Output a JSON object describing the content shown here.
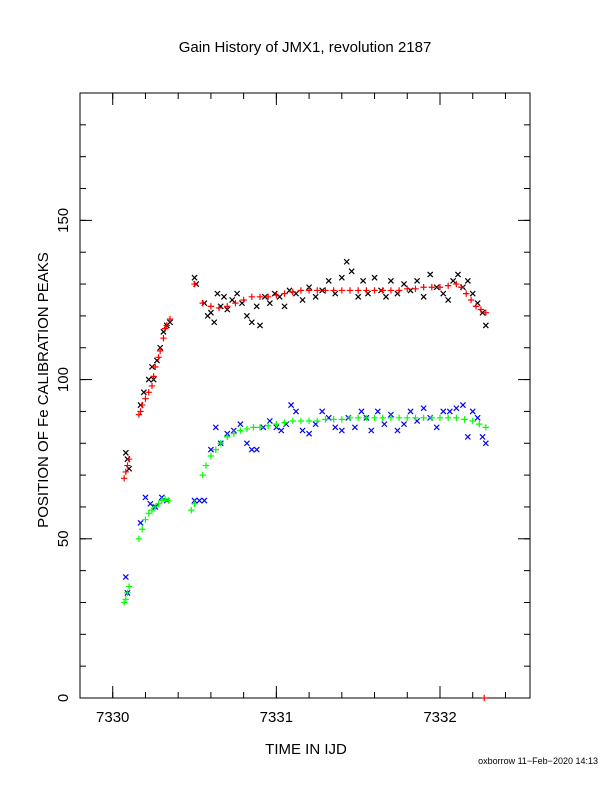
{
  "chart_data": {
    "type": "scatter",
    "title": "Gain History of JMX1, revolution 2187",
    "xlabel": "TIME IN IJD",
    "ylabel": "POSITION OF Fe CALIBRATION PEAKS",
    "xlim": [
      7329.8,
      7332.55
    ],
    "ylim": [
      0,
      190
    ],
    "x_ticks": [
      7330,
      7331,
      7332
    ],
    "y_ticks": [
      0,
      50,
      100,
      150
    ],
    "x_minor_step": 0.2,
    "y_minor_step": 10,
    "grid": false,
    "colors": {
      "black": "#000000",
      "red": "#ff0000",
      "blue": "#0000ff",
      "green": "#00ff00"
    },
    "series": [
      {
        "color": "#000000",
        "marker": "x",
        "points": [
          [
            7330.08,
            77
          ],
          [
            7330.09,
            75
          ],
          [
            7330.1,
            72
          ],
          [
            7330.17,
            92
          ],
          [
            7330.19,
            96
          ],
          [
            7330.22,
            100
          ],
          [
            7330.24,
            104
          ],
          [
            7330.25,
            100
          ],
          [
            7330.27,
            106
          ],
          [
            7330.29,
            110
          ],
          [
            7330.31,
            115
          ],
          [
            7330.33,
            117
          ],
          [
            7330.35,
            118
          ],
          [
            7330.5,
            132
          ],
          [
            7330.51,
            130
          ],
          [
            7330.56,
            124
          ],
          [
            7330.58,
            120
          ],
          [
            7330.6,
            121
          ],
          [
            7330.62,
            118
          ],
          [
            7330.64,
            127
          ],
          [
            7330.66,
            123
          ],
          [
            7330.68,
            126
          ],
          [
            7330.7,
            122
          ],
          [
            7330.73,
            125
          ],
          [
            7330.76,
            127
          ],
          [
            7330.79,
            124
          ],
          [
            7330.82,
            120
          ],
          [
            7330.85,
            118
          ],
          [
            7330.88,
            123
          ],
          [
            7330.9,
            117
          ],
          [
            7330.93,
            126
          ],
          [
            7330.96,
            124
          ],
          [
            7330.99,
            127
          ],
          [
            7331.02,
            126
          ],
          [
            7331.05,
            123
          ],
          [
            7331.08,
            128
          ],
          [
            7331.12,
            127
          ],
          [
            7331.16,
            125
          ],
          [
            7331.2,
            129
          ],
          [
            7331.24,
            126
          ],
          [
            7331.28,
            128
          ],
          [
            7331.32,
            131
          ],
          [
            7331.36,
            127
          ],
          [
            7331.4,
            132
          ],
          [
            7331.43,
            137
          ],
          [
            7331.46,
            134
          ],
          [
            7331.5,
            126
          ],
          [
            7331.53,
            131
          ],
          [
            7331.56,
            127
          ],
          [
            7331.6,
            132
          ],
          [
            7331.64,
            128
          ],
          [
            7331.67,
            126
          ],
          [
            7331.7,
            131
          ],
          [
            7331.74,
            127
          ],
          [
            7331.78,
            130
          ],
          [
            7331.82,
            128
          ],
          [
            7331.86,
            131
          ],
          [
            7331.9,
            126
          ],
          [
            7331.94,
            133
          ],
          [
            7331.98,
            129
          ],
          [
            7332.02,
            127
          ],
          [
            7332.05,
            125
          ],
          [
            7332.08,
            131
          ],
          [
            7332.11,
            133
          ],
          [
            7332.14,
            129
          ],
          [
            7332.17,
            131
          ],
          [
            7332.2,
            127
          ],
          [
            7332.23,
            124
          ],
          [
            7332.26,
            121
          ],
          [
            7332.28,
            117
          ]
        ]
      },
      {
        "color": "#ff0000",
        "marker": "+",
        "points": [
          [
            7330.07,
            69
          ],
          [
            7330.08,
            71
          ],
          [
            7330.09,
            73
          ],
          [
            7330.1,
            75
          ],
          [
            7330.16,
            89
          ],
          [
            7330.17,
            90
          ],
          [
            7330.18,
            92
          ],
          [
            7330.2,
            94
          ],
          [
            7330.22,
            96
          ],
          [
            7330.24,
            98
          ],
          [
            7330.25,
            101
          ],
          [
            7330.26,
            104
          ],
          [
            7330.28,
            107
          ],
          [
            7330.29,
            109
          ],
          [
            7330.31,
            113
          ],
          [
            7330.32,
            116
          ],
          [
            7330.33,
            117
          ],
          [
            7330.35,
            119
          ],
          [
            7330.5,
            130
          ],
          [
            7330.55,
            124
          ],
          [
            7330.6,
            123
          ],
          [
            7330.65,
            122.5
          ],
          [
            7330.7,
            123
          ],
          [
            7330.75,
            124
          ],
          [
            7330.8,
            125
          ],
          [
            7330.85,
            126
          ],
          [
            7330.9,
            126
          ],
          [
            7330.95,
            126
          ],
          [
            7331.0,
            126.5
          ],
          [
            7331.05,
            127
          ],
          [
            7331.1,
            127.5
          ],
          [
            7331.15,
            128
          ],
          [
            7331.2,
            128
          ],
          [
            7331.25,
            128
          ],
          [
            7331.3,
            128
          ],
          [
            7331.35,
            128
          ],
          [
            7331.4,
            128
          ],
          [
            7331.45,
            128
          ],
          [
            7331.5,
            128
          ],
          [
            7331.55,
            128
          ],
          [
            7331.6,
            128
          ],
          [
            7331.65,
            128
          ],
          [
            7331.7,
            128
          ],
          [
            7331.75,
            128
          ],
          [
            7331.8,
            128.5
          ],
          [
            7331.85,
            128.5
          ],
          [
            7331.9,
            129
          ],
          [
            7331.95,
            129
          ],
          [
            7332.0,
            129
          ],
          [
            7332.05,
            129.5
          ],
          [
            7332.1,
            130
          ],
          [
            7332.13,
            129
          ],
          [
            7332.16,
            127
          ],
          [
            7332.19,
            125
          ],
          [
            7332.22,
            123
          ],
          [
            7332.25,
            122
          ],
          [
            7332.28,
            121
          ],
          [
            7332.27,
            0
          ]
        ]
      },
      {
        "color": "#0000ff",
        "marker": "x",
        "points": [
          [
            7330.08,
            38
          ],
          [
            7330.09,
            33
          ],
          [
            7330.17,
            55
          ],
          [
            7330.2,
            63
          ],
          [
            7330.23,
            61
          ],
          [
            7330.26,
            60
          ],
          [
            7330.3,
            63
          ],
          [
            7330.33,
            62
          ],
          [
            7330.5,
            62
          ],
          [
            7330.53,
            62
          ],
          [
            7330.56,
            62
          ],
          [
            7330.6,
            78
          ],
          [
            7330.63,
            85
          ],
          [
            7330.66,
            80
          ],
          [
            7330.7,
            83
          ],
          [
            7330.74,
            84
          ],
          [
            7330.78,
            86
          ],
          [
            7330.82,
            80
          ],
          [
            7330.85,
            78
          ],
          [
            7330.88,
            78
          ],
          [
            7330.92,
            85
          ],
          [
            7330.96,
            87
          ],
          [
            7331.0,
            85
          ],
          [
            7331.03,
            84
          ],
          [
            7331.06,
            86
          ],
          [
            7331.09,
            92
          ],
          [
            7331.12,
            90
          ],
          [
            7331.16,
            84
          ],
          [
            7331.2,
            83
          ],
          [
            7331.24,
            86
          ],
          [
            7331.28,
            90
          ],
          [
            7331.32,
            88
          ],
          [
            7331.36,
            85
          ],
          [
            7331.4,
            84
          ],
          [
            7331.44,
            88
          ],
          [
            7331.48,
            85
          ],
          [
            7331.52,
            90
          ],
          [
            7331.55,
            88
          ],
          [
            7331.58,
            84
          ],
          [
            7331.62,
            90
          ],
          [
            7331.66,
            86
          ],
          [
            7331.7,
            89
          ],
          [
            7331.74,
            84
          ],
          [
            7331.78,
            86
          ],
          [
            7331.82,
            90
          ],
          [
            7331.86,
            87
          ],
          [
            7331.9,
            91
          ],
          [
            7331.94,
            88
          ],
          [
            7331.98,
            85
          ],
          [
            7332.02,
            90
          ],
          [
            7332.06,
            90
          ],
          [
            7332.1,
            91
          ],
          [
            7332.14,
            92
          ],
          [
            7332.17,
            82
          ],
          [
            7332.2,
            90
          ],
          [
            7332.23,
            88
          ],
          [
            7332.26,
            82
          ],
          [
            7332.28,
            80
          ]
        ]
      },
      {
        "color": "#00ff00",
        "marker": "+",
        "points": [
          [
            7330.07,
            30
          ],
          [
            7330.08,
            31
          ],
          [
            7330.09,
            33
          ],
          [
            7330.1,
            35
          ],
          [
            7330.16,
            50
          ],
          [
            7330.18,
            53
          ],
          [
            7330.2,
            56
          ],
          [
            7330.22,
            58
          ],
          [
            7330.24,
            59
          ],
          [
            7330.26,
            60
          ],
          [
            7330.28,
            61
          ],
          [
            7330.3,
            62
          ],
          [
            7330.32,
            62.5
          ],
          [
            7330.34,
            62
          ],
          [
            7330.48,
            59
          ],
          [
            7330.5,
            61
          ],
          [
            7330.55,
            70
          ],
          [
            7330.57,
            73
          ],
          [
            7330.6,
            76
          ],
          [
            7330.63,
            78
          ],
          [
            7330.66,
            80
          ],
          [
            7330.7,
            82
          ],
          [
            7330.74,
            83
          ],
          [
            7330.78,
            84
          ],
          [
            7330.82,
            84.5
          ],
          [
            7330.86,
            85
          ],
          [
            7330.9,
            85
          ],
          [
            7330.95,
            85.5
          ],
          [
            7331.0,
            86
          ],
          [
            7331.05,
            86.5
          ],
          [
            7331.1,
            87
          ],
          [
            7331.15,
            87
          ],
          [
            7331.2,
            87
          ],
          [
            7331.25,
            87
          ],
          [
            7331.3,
            87.5
          ],
          [
            7331.35,
            87.5
          ],
          [
            7331.4,
            87.5
          ],
          [
            7331.45,
            88
          ],
          [
            7331.5,
            88
          ],
          [
            7331.55,
            88
          ],
          [
            7331.6,
            88
          ],
          [
            7331.65,
            88
          ],
          [
            7331.7,
            88
          ],
          [
            7331.75,
            88
          ],
          [
            7331.8,
            88
          ],
          [
            7331.85,
            88
          ],
          [
            7331.9,
            88
          ],
          [
            7331.95,
            88
          ],
          [
            7332.0,
            88
          ],
          [
            7332.05,
            88
          ],
          [
            7332.1,
            88
          ],
          [
            7332.15,
            87.5
          ],
          [
            7332.2,
            87
          ],
          [
            7332.24,
            86
          ],
          [
            7332.28,
            85
          ]
        ]
      }
    ]
  },
  "footer": {
    "stamp": "oxborrow 11−Feb−2020 14:13"
  }
}
